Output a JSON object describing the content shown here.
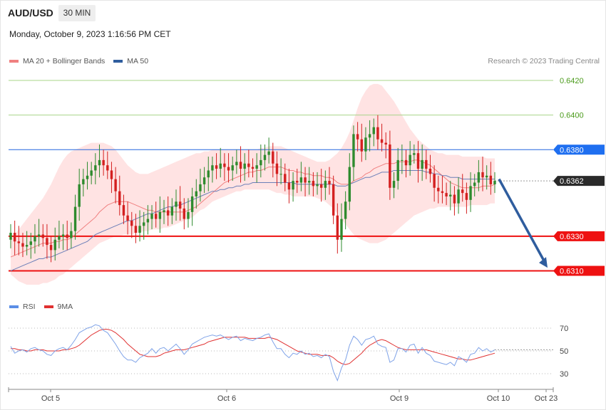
{
  "header": {
    "symbol": "AUD/USD",
    "interval": "30 MIN",
    "datetime": "Monday, October 9, 2023 1:16:56 PM CET",
    "copyright": "Research © 2023 Trading Central"
  },
  "legend": {
    "ma20_label": "MA 20 + Bollinger Bands",
    "ma20_color": "#f08080",
    "ma50_label": "MA 50",
    "ma50_color": "#2f5d9e"
  },
  "rsi_legend": {
    "rsi_label": "RSI",
    "rsi_color": "#5b8ee6",
    "ma9_label": "9MA",
    "ma9_color": "#e03030"
  },
  "chart_data": {
    "type": "candlestick",
    "symbol": "AUD/USD",
    "ylim": [
      0.6302,
      0.6427
    ],
    "x_ticks": [
      "Oct 5",
      "Oct 6",
      "Oct 9",
      "Oct 10",
      "Oct 23"
    ],
    "last_price": "0.6362",
    "levels": [
      {
        "label": "0.6420",
        "value": 0.642,
        "style": "green-thin",
        "color": "#4a9a1a"
      },
      {
        "label": "0.6400",
        "value": 0.64,
        "style": "green-thin",
        "color": "#4a9a1a"
      },
      {
        "label": "0.6380",
        "value": 0.638,
        "style": "blue",
        "color": "#2266dd"
      },
      {
        "label": "0.6362",
        "value": 0.6362,
        "style": "current",
        "color": "#333333"
      },
      {
        "label": "0.6330",
        "value": 0.633,
        "style": "red",
        "color": "#ee1111"
      },
      {
        "label": "0.6310",
        "value": 0.631,
        "style": "red",
        "color": "#ee1111"
      }
    ],
    "forecast_arrow": {
      "from": 0.6363,
      "to": 0.6311,
      "color": "#2f5d9e"
    },
    "close": [
      0.6332,
      0.6327,
      0.6326,
      0.6324,
      0.6325,
      0.6327,
      0.633,
      0.6331,
      0.6329,
      0.6325,
      0.6322,
      0.6328,
      0.633,
      0.6331,
      0.6329,
      0.6333,
      0.6347,
      0.636,
      0.6363,
      0.6365,
      0.6368,
      0.6371,
      0.6374,
      0.6371,
      0.6368,
      0.6363,
      0.6356,
      0.6348,
      0.6342,
      0.6339,
      0.6336,
      0.6332,
      0.6336,
      0.6338,
      0.634,
      0.6343,
      0.634,
      0.6344,
      0.6345,
      0.6342,
      0.6347,
      0.635,
      0.6346,
      0.634,
      0.6344,
      0.6353,
      0.6356,
      0.636,
      0.6364,
      0.6368,
      0.6371,
      0.6369,
      0.6372,
      0.637,
      0.6368,
      0.6371,
      0.6373,
      0.6369,
      0.6372,
      0.637,
      0.6369,
      0.6371,
      0.6374,
      0.6377,
      0.6379,
      0.6372,
      0.6366,
      0.6366,
      0.6361,
      0.6357,
      0.6362,
      0.6361,
      0.6364,
      0.6361,
      0.6362,
      0.6359,
      0.636,
      0.6358,
      0.6362,
      0.636,
      0.6342,
      0.6328,
      0.634,
      0.635,
      0.637,
      0.6389,
      0.6386,
      0.6379,
      0.6387,
      0.6389,
      0.6393,
      0.6386,
      0.6384,
      0.6383,
      0.6358,
      0.6362,
      0.6374,
      0.6374,
      0.6371,
      0.6377,
      0.6378,
      0.6369,
      0.6374,
      0.6369,
      0.6366,
      0.6358,
      0.6356,
      0.6355,
      0.6353,
      0.6354,
      0.6349,
      0.6357,
      0.6355,
      0.6351,
      0.6359,
      0.6361,
      0.6367,
      0.6364,
      0.6365,
      0.636,
      0.6362
    ],
    "ma20": [
      0.6318,
      0.6319,
      0.632,
      0.6321,
      0.6322,
      0.6323,
      0.6324,
      0.6325,
      0.6326,
      0.6326,
      0.6326,
      0.6327,
      0.6327,
      0.6328,
      0.6328,
      0.6329,
      0.6331,
      0.6333,
      0.6335,
      0.6337,
      0.6339,
      0.6341,
      0.6344,
      0.6346,
      0.6348,
      0.6349,
      0.635,
      0.635,
      0.635,
      0.635,
      0.6349,
      0.6348,
      0.6347,
      0.6346,
      0.6345,
      0.6345,
      0.6344,
      0.6344,
      0.6344,
      0.6344,
      0.6344,
      0.6344,
      0.6344,
      0.6344,
      0.6345,
      0.6346,
      0.6347,
      0.6349,
      0.6351,
      0.6353,
      0.6355,
      0.6357,
      0.6359,
      0.6361,
      0.6362,
      0.6363,
      0.6364,
      0.6365,
      0.6366,
      0.6367,
      0.6367,
      0.6368,
      0.6368,
      0.6369,
      0.637,
      0.637,
      0.637,
      0.637,
      0.6369,
      0.6368,
      0.6368,
      0.6367,
      0.6367,
      0.6366,
      0.6366,
      0.6365,
      0.6365,
      0.6365,
      0.6364,
      0.6364,
      0.6363,
      0.6361,
      0.636,
      0.636,
      0.636,
      0.6362,
      0.6363,
      0.6364,
      0.6366,
      0.6367,
      0.6369,
      0.637,
      0.6371,
      0.6372,
      0.6372,
      0.6372,
      0.6373,
      0.6373,
      0.6373,
      0.6373,
      0.6374,
      0.6374,
      0.6373,
      0.6372,
      0.6371,
      0.6369,
      0.6367,
      0.6365,
      0.6363,
      0.6361,
      0.636,
      0.6359,
      0.6358,
      0.6358,
      0.6358,
      0.6358,
      0.6358,
      0.6359,
      0.6359,
      0.6359,
      0.636
    ],
    "ma50": [
      0.631,
      0.6311,
      0.6312,
      0.6313,
      0.6314,
      0.6315,
      0.6316,
      0.6317,
      0.6317,
      0.6318,
      0.6318,
      0.6319,
      0.632,
      0.6321,
      0.6322,
      0.6323,
      0.6324,
      0.6325,
      0.6326,
      0.6327,
      0.6329,
      0.6331,
      0.6332,
      0.6333,
      0.6334,
      0.6335,
      0.6336,
      0.6337,
      0.6338,
      0.6339,
      0.6339,
      0.634,
      0.6341,
      0.6342,
      0.6343,
      0.6343,
      0.6344,
      0.6345,
      0.6346,
      0.6347,
      0.6347,
      0.6348,
      0.6348,
      0.6349,
      0.635,
      0.6351,
      0.6352,
      0.6353,
      0.6354,
      0.6355,
      0.6356,
      0.6356,
      0.6357,
      0.6357,
      0.6358,
      0.6358,
      0.6359,
      0.6359,
      0.636,
      0.636,
      0.6361,
      0.6361,
      0.6361,
      0.6361,
      0.6361,
      0.6361,
      0.6361,
      0.6361,
      0.6361,
      0.6361,
      0.6361,
      0.636,
      0.636,
      0.636,
      0.636,
      0.636,
      0.636,
      0.636,
      0.636,
      0.636,
      0.636,
      0.6359,
      0.6359,
      0.6359,
      0.636,
      0.6361,
      0.6362,
      0.6363,
      0.6364,
      0.6364,
      0.6365,
      0.6366,
      0.6367,
      0.6367,
      0.6367,
      0.6368,
      0.6368,
      0.6368,
      0.6368,
      0.6368,
      0.6368,
      0.6368,
      0.6368,
      0.6367,
      0.6367,
      0.6366,
      0.6366,
      0.6365,
      0.6365,
      0.6364,
      0.6364,
      0.6364,
      0.6363,
      0.6363,
      0.6363,
      0.6363,
      0.6363,
      0.6363,
      0.6363,
      0.6363,
      0.6363
    ],
    "bb_upper": [
      0.6328,
      0.6331,
      0.6334,
      0.6337,
      0.634,
      0.6343,
      0.6346,
      0.6349,
      0.6352,
      0.6356,
      0.636,
      0.6365,
      0.637,
      0.6374,
      0.6377,
      0.6379,
      0.638,
      0.6381,
      0.6382,
      0.6383,
      0.6384,
      0.6384,
      0.6384,
      0.6384,
      0.6383,
      0.6382,
      0.638,
      0.6377,
      0.6374,
      0.6371,
      0.6369,
      0.6367,
      0.6366,
      0.6366,
      0.6366,
      0.6367,
      0.6368,
      0.6369,
      0.637,
      0.6371,
      0.6372,
      0.6373,
      0.6374,
      0.6375,
      0.6376,
      0.6377,
      0.6378,
      0.6378,
      0.6379,
      0.6379,
      0.638,
      0.638,
      0.638,
      0.638,
      0.638,
      0.638,
      0.638,
      0.638,
      0.638,
      0.638,
      0.638,
      0.638,
      0.6381,
      0.6381,
      0.6382,
      0.6382,
      0.6382,
      0.6382,
      0.6381,
      0.638,
      0.6379,
      0.6378,
      0.6377,
      0.6376,
      0.6375,
      0.6374,
      0.6373,
      0.6373,
      0.6373,
      0.6374,
      0.6376,
      0.6378,
      0.6381,
      0.6385,
      0.639,
      0.6397,
      0.6404,
      0.641,
      0.6414,
      0.6417,
      0.6418,
      0.6418,
      0.6417,
      0.6414,
      0.6411,
      0.6408,
      0.6404,
      0.64,
      0.6396,
      0.6392,
      0.6389,
      0.6386,
      0.6384,
      0.6382,
      0.638,
      0.6379,
      0.6378,
      0.6378,
      0.6377,
      0.6377,
      0.6377,
      0.6377,
      0.6376,
      0.6376,
      0.6376,
      0.6376,
      0.6376,
      0.6376,
      0.6375,
      0.6375,
      0.6375
    ],
    "bb_lower": [
      0.6308,
      0.6306,
      0.6304,
      0.6303,
      0.6302,
      0.6302,
      0.6302,
      0.6302,
      0.6303,
      0.6303,
      0.6304,
      0.6305,
      0.6307,
      0.6308,
      0.631,
      0.6312,
      0.6314,
      0.6316,
      0.6318,
      0.632,
      0.6322,
      0.6324,
      0.6326,
      0.6327,
      0.6328,
      0.6329,
      0.633,
      0.633,
      0.6331,
      0.6331,
      0.6331,
      0.6332,
      0.6332,
      0.6333,
      0.6333,
      0.6334,
      0.6334,
      0.6334,
      0.6335,
      0.6335,
      0.6336,
      0.6337,
      0.6338,
      0.6339,
      0.634,
      0.6341,
      0.6343,
      0.6345,
      0.6346,
      0.6348,
      0.635,
      0.6351,
      0.6352,
      0.6353,
      0.6354,
      0.6355,
      0.6356,
      0.6356,
      0.6357,
      0.6357,
      0.6357,
      0.6357,
      0.6357,
      0.6357,
      0.6357,
      0.6356,
      0.6355,
      0.6355,
      0.6354,
      0.6354,
      0.6353,
      0.6353,
      0.6353,
      0.6353,
      0.6353,
      0.6353,
      0.6352,
      0.6351,
      0.635,
      0.6348,
      0.6346,
      0.6343,
      0.634,
      0.6337,
      0.6334,
      0.6331,
      0.6329,
      0.6328,
      0.6327,
      0.6326,
      0.6326,
      0.6326,
      0.6327,
      0.6328,
      0.633,
      0.6332,
      0.6334,
      0.6336,
      0.6338,
      0.634,
      0.6342,
      0.6343,
      0.6344,
      0.6345,
      0.6346,
      0.6346,
      0.6347,
      0.6347,
      0.6347,
      0.6347,
      0.6347,
      0.6347,
      0.6347,
      0.6347,
      0.6348,
      0.6348,
      0.6348,
      0.6348,
      0.6348,
      0.6349,
      0.6349
    ],
    "rsi": {
      "ylim": [
        20,
        80
      ],
      "ticks": [
        "70",
        "50",
        "30"
      ],
      "rsi": [
        54,
        48,
        50,
        51,
        49,
        52,
        53,
        51,
        50,
        47,
        46,
        50,
        52,
        53,
        51,
        55,
        60,
        66,
        68,
        70,
        71,
        73,
        72,
        68,
        66,
        61,
        56,
        50,
        45,
        42,
        42,
        40,
        44,
        46,
        48,
        52,
        48,
        52,
        53,
        50,
        53,
        56,
        52,
        47,
        51,
        56,
        58,
        60,
        62,
        63,
        64,
        63,
        64,
        62,
        60,
        62,
        63,
        59,
        61,
        60,
        59,
        61,
        62,
        64,
        65,
        58,
        52,
        52,
        47,
        44,
        48,
        47,
        50,
        47,
        48,
        45,
        46,
        44,
        47,
        45,
        32,
        24,
        35,
        42,
        55,
        63,
        60,
        55,
        60,
        61,
        63,
        56,
        54,
        53,
        40,
        42,
        52,
        52,
        49,
        55,
        56,
        48,
        53,
        48,
        46,
        41,
        40,
        39,
        38,
        40,
        37,
        45,
        43,
        40,
        47,
        48,
        53,
        50,
        52,
        49,
        51
      ],
      "ma9": [
        52,
        52,
        51,
        51,
        50,
        50,
        51,
        51,
        51,
        50,
        50,
        50,
        50,
        51,
        51,
        52,
        53,
        55,
        58,
        61,
        64,
        66,
        68,
        69,
        69,
        68,
        66,
        63,
        60,
        56,
        53,
        50,
        47,
        46,
        45,
        45,
        45,
        46,
        48,
        49,
        50,
        51,
        51,
        51,
        52,
        53,
        54,
        55,
        56,
        58,
        59,
        60,
        61,
        62,
        62,
        62,
        62,
        62,
        62,
        61,
        61,
        61,
        61,
        61,
        62,
        61,
        60,
        58,
        56,
        54,
        52,
        50,
        49,
        48,
        47,
        47,
        47,
        46,
        46,
        46,
        44,
        41,
        39,
        38,
        39,
        42,
        45,
        48,
        52,
        55,
        57,
        59,
        60,
        59,
        57,
        55,
        53,
        52,
        51,
        51,
        51,
        51,
        51,
        51,
        50,
        49,
        48,
        47,
        46,
        45,
        44,
        43,
        43,
        42,
        42,
        43,
        44,
        45,
        46,
        47,
        48
      ]
    }
  }
}
